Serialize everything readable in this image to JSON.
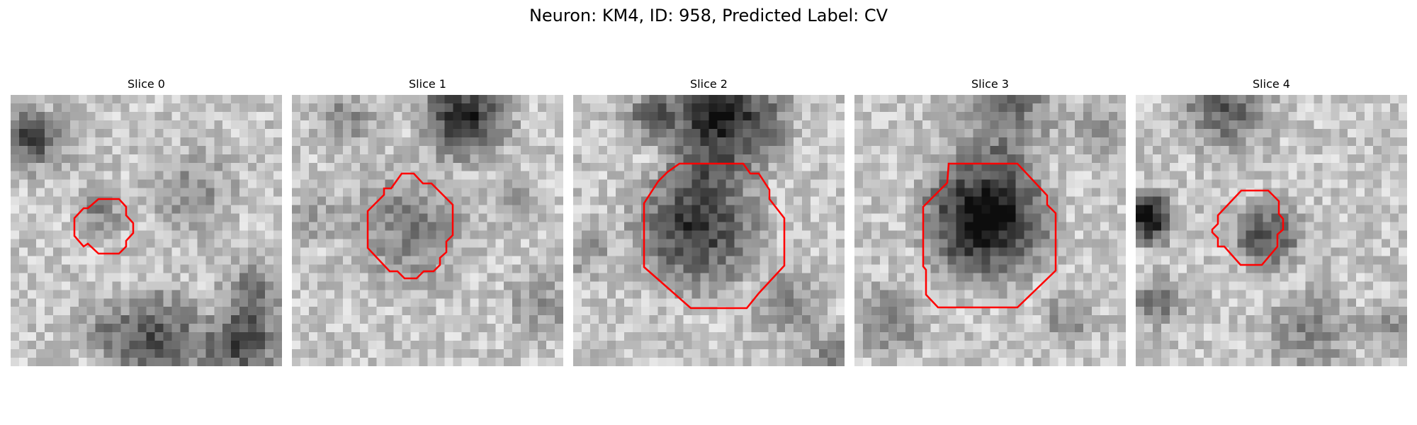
{
  "figure": {
    "title": "Neuron: KM4, ID: 958, Predicted Label: CV",
    "contour_color": "#ff0000",
    "colormap": "gray"
  },
  "slices": [
    {
      "title": "Slice 0"
    },
    {
      "title": "Slice 1"
    },
    {
      "title": "Slice 2"
    },
    {
      "title": "Slice 3"
    },
    {
      "title": "Slice 4"
    }
  ]
}
